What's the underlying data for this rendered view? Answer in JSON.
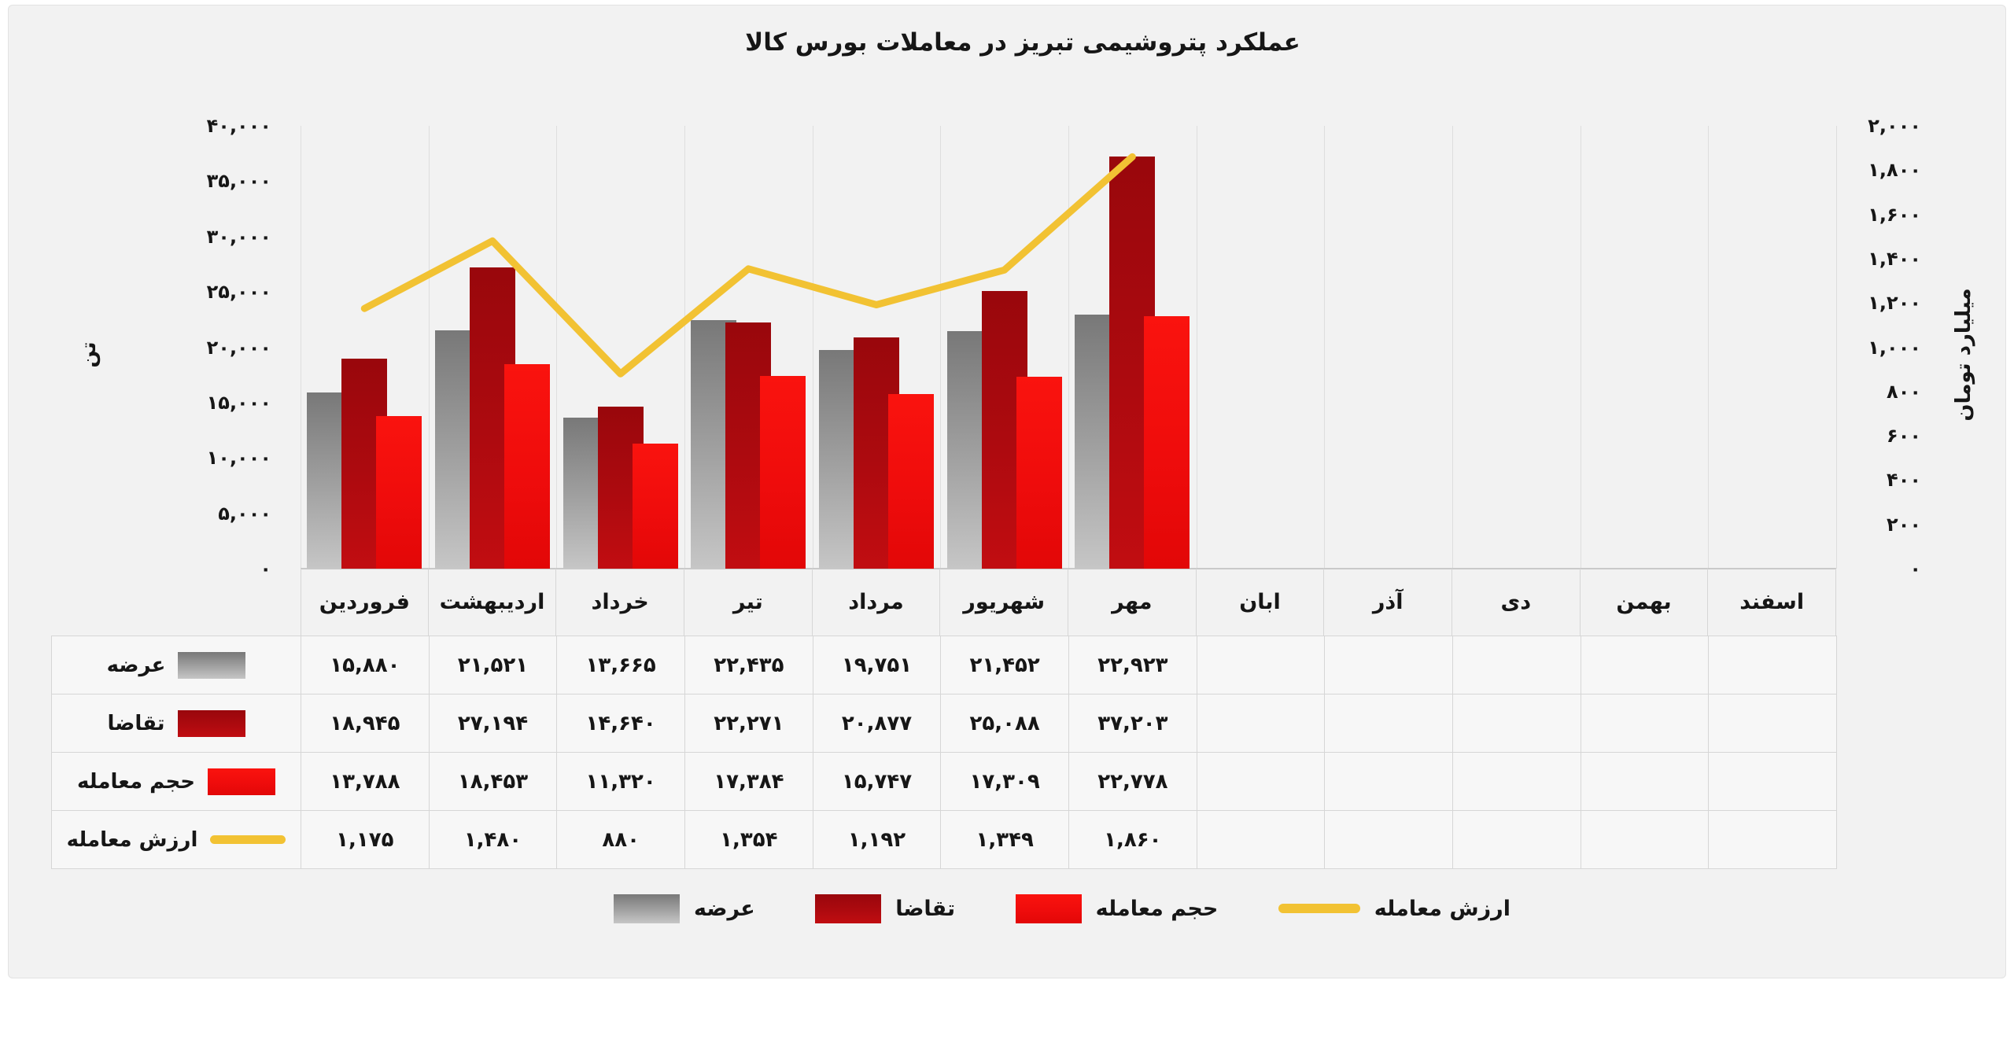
{
  "title": "عملکرد پتروشیمی تبریز در معاملات بورس کالا",
  "y_axis_left": {
    "title": "تن",
    "tick_labels": [
      "۴۰,۰۰۰",
      "۳۵,۰۰۰",
      "۳۰,۰۰۰",
      "۲۵,۰۰۰",
      "۲۰,۰۰۰",
      "۱۵,۰۰۰",
      "۱۰,۰۰۰",
      "۵,۰۰۰",
      "۰"
    ],
    "tick_values": [
      40000,
      35000,
      30000,
      25000,
      20000,
      15000,
      10000,
      5000,
      0
    ]
  },
  "y_axis_right": {
    "title": "میلیارد تومان",
    "tick_labels": [
      "۲,۰۰۰",
      "۱,۸۰۰",
      "۱,۶۰۰",
      "۱,۴۰۰",
      "۱,۲۰۰",
      "۱,۰۰۰",
      "۸۰۰",
      "۶۰۰",
      "۴۰۰",
      "۲۰۰",
      "۰"
    ],
    "tick_values": [
      2000,
      1800,
      1600,
      1400,
      1200,
      1000,
      800,
      600,
      400,
      200,
      0
    ]
  },
  "months": [
    "فروردین",
    "اردیبهشت",
    "خرداد",
    "تیر",
    "مرداد",
    "شهریور",
    "مهر",
    "ابان",
    "آذر",
    "دی",
    "بهمن",
    "اسفند"
  ],
  "chart_data": {
    "type": "bar+line",
    "categories": [
      "فروردین",
      "اردیبهشت",
      "خرداد",
      "تیر",
      "مرداد",
      "شهریور",
      "مهر",
      "ابان",
      "آذر",
      "دی",
      "بهمن",
      "اسفند"
    ],
    "title": "عملکرد پتروشیمی تبریز در معاملات بورس کالا",
    "bar_axis": {
      "label": "تن",
      "min": 0,
      "max": 40000,
      "step": 5000,
      "side": "left"
    },
    "line_axis": {
      "label": "میلیارد تومان",
      "min": 0,
      "max": 2000,
      "step": 200,
      "side": "right"
    },
    "grid": "vertical-only",
    "legend_position": "bottom",
    "series": [
      {
        "name": "عرضه",
        "type": "bar",
        "color_key": "supply",
        "values": [
          15880,
          21521,
          13665,
          22435,
          19751,
          21452,
          22923
        ]
      },
      {
        "name": "تقاضا",
        "type": "bar",
        "color_key": "demand",
        "values": [
          18945,
          27194,
          14640,
          22271,
          20877,
          25088,
          37203
        ]
      },
      {
        "name": "حجم معامله",
        "type": "bar",
        "color_key": "volume",
        "values": [
          13788,
          18453,
          11320,
          17384,
          15747,
          17309,
          22778
        ]
      },
      {
        "name": "ارزش معامله",
        "type": "line",
        "color_key": "value",
        "values": [
          1175,
          1480,
          880,
          1354,
          1192,
          1349,
          1860
        ]
      }
    ]
  },
  "table": {
    "rows": [
      {
        "label": "عرضه",
        "swatch": "supply",
        "cells": [
          "۱۵,۸۸۰",
          "۲۱,۵۲۱",
          "۱۳,۶۶۵",
          "۲۲,۴۳۵",
          "۱۹,۷۵۱",
          "۲۱,۴۵۲",
          "۲۲,۹۲۳",
          "",
          "",
          "",
          "",
          ""
        ]
      },
      {
        "label": "تقاضا",
        "swatch": "demand",
        "cells": [
          "۱۸,۹۴۵",
          "۲۷,۱۹۴",
          "۱۴,۶۴۰",
          "۲۲,۲۷۱",
          "۲۰,۸۷۷",
          "۲۵,۰۸۸",
          "۳۷,۲۰۳",
          "",
          "",
          "",
          "",
          ""
        ]
      },
      {
        "label": "حجم معامله",
        "swatch": "volume",
        "cells": [
          "۱۳,۷۸۸",
          "۱۸,۴۵۳",
          "۱۱,۳۲۰",
          "۱۷,۳۸۴",
          "۱۵,۷۴۷",
          "۱۷,۳۰۹",
          "۲۲,۷۷۸",
          "",
          "",
          "",
          "",
          ""
        ]
      },
      {
        "label": "ارزش معامله",
        "swatch": "value",
        "cells": [
          "۱,۱۷۵",
          "۱,۴۸۰",
          "۸۸۰",
          "۱,۳۵۴",
          "۱,۱۹۲",
          "۱,۳۴۹",
          "۱,۸۶۰",
          "",
          "",
          "",
          "",
          ""
        ]
      }
    ]
  },
  "legend": {
    "items": [
      {
        "label": "عرضه",
        "swatch": "supply"
      },
      {
        "label": "تقاضا",
        "swatch": "demand"
      },
      {
        "label": "حجم معامله",
        "swatch": "volume"
      },
      {
        "label": "ارزش معامله",
        "swatch": "value"
      }
    ]
  },
  "colors": {
    "supply_top": "#787878",
    "supply_bottom": "#c6c6c6",
    "demand": "#ad0a0f",
    "volume": "#ef0c0c",
    "value": "#f2c233",
    "text": "#161616",
    "grid": "#dedede",
    "border": "#d6d6d6",
    "panel": "#f2f2f2",
    "cell": "#f7f7f7"
  }
}
